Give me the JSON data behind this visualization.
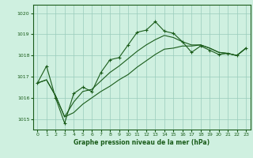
{
  "xlabel": "Graphe pression niveau de la mer (hPa)",
  "bg_color": "#cff0e0",
  "grid_color": "#99ccbb",
  "line_color": "#1a5c1a",
  "ylim": [
    1014.5,
    1020.4
  ],
  "xlim": [
    -0.5,
    23.5
  ],
  "yticks": [
    1015,
    1016,
    1017,
    1018,
    1019,
    1020
  ],
  "xticks": [
    0,
    1,
    2,
    3,
    4,
    5,
    6,
    7,
    8,
    9,
    10,
    11,
    12,
    13,
    14,
    15,
    16,
    17,
    18,
    19,
    20,
    21,
    22,
    23
  ],
  "series_main": [
    1016.7,
    1017.5,
    1016.0,
    1014.8,
    1016.2,
    1016.5,
    1016.3,
    1017.2,
    1017.8,
    1017.9,
    1018.5,
    1019.1,
    1019.2,
    1019.6,
    1019.15,
    1019.05,
    1018.65,
    1018.15,
    1018.45,
    1018.25,
    1018.05,
    1018.1,
    1018.0,
    1018.35
  ],
  "series_mid": [
    1016.7,
    1016.85,
    1016.1,
    1015.1,
    1015.8,
    1016.3,
    1016.4,
    1016.8,
    1017.2,
    1017.5,
    1017.85,
    1018.2,
    1018.5,
    1018.75,
    1018.95,
    1018.85,
    1018.65,
    1018.5,
    1018.5,
    1018.35,
    1018.15,
    1018.1,
    1018.0,
    1018.35
  ],
  "series_low": [
    1016.7,
    1016.85,
    1016.1,
    1015.1,
    1015.3,
    1015.7,
    1016.0,
    1016.3,
    1016.55,
    1016.85,
    1017.1,
    1017.45,
    1017.75,
    1018.05,
    1018.3,
    1018.35,
    1018.45,
    1018.45,
    1018.5,
    1018.35,
    1018.15,
    1018.1,
    1018.0,
    1018.35
  ]
}
